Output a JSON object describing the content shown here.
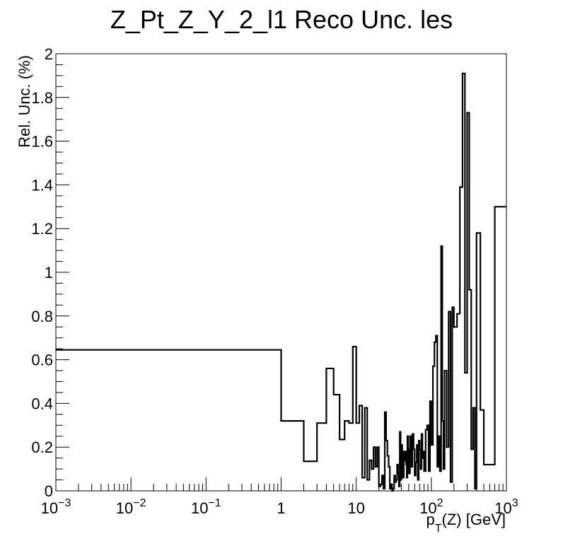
{
  "chart_data": {
    "type": "line",
    "style": "step-histogram",
    "title": "Z_Pt_Z_Y_2_l1 Reco Unc. les",
    "xlabel_base": "p",
    "xlabel_sub": "T",
    "xlabel_rest": "(Z) [GeV]",
    "ylabel": "Rel. Unc. (%)",
    "x_scale": "log",
    "xlim": [
      0.001,
      1000
    ],
    "ylim": [
      0,
      2
    ],
    "grid": false,
    "x_tick_labels": [
      {
        "value": 0.001,
        "base": "10",
        "exp": "−3"
      },
      {
        "value": 0.01,
        "base": "10",
        "exp": "−2"
      },
      {
        "value": 0.1,
        "base": "10",
        "exp": "−1"
      },
      {
        "value": 1,
        "base": "1",
        "exp": ""
      },
      {
        "value": 10,
        "base": "10",
        "exp": ""
      },
      {
        "value": 100,
        "base": "10",
        "exp": "2"
      },
      {
        "value": 1000,
        "base": "10",
        "exp": "3"
      }
    ],
    "y_ticks": [
      0,
      0.2,
      0.4,
      0.6,
      0.8,
      1,
      1.2,
      1.4,
      1.6,
      1.8,
      2
    ],
    "y_tick_labels": [
      "0",
      "0.2",
      "0.4",
      "0.6",
      "0.8",
      "1",
      "1.2",
      "1.4",
      "1.6",
      "1.8",
      "2"
    ],
    "series": [
      {
        "line_color": "#000000",
        "bin_edges": [
          0.001,
          1,
          2,
          3,
          4,
          5,
          6,
          7,
          8,
          9,
          10,
          11,
          12,
          13,
          14,
          15,
          16,
          17,
          18,
          19,
          20,
          21,
          22,
          23,
          24,
          25,
          26,
          27,
          28,
          29,
          30,
          31,
          32,
          33,
          34,
          35,
          36,
          37,
          38,
          39,
          40,
          41,
          42,
          43,
          44,
          45,
          46,
          47,
          48,
          49,
          50,
          52,
          54,
          56,
          58,
          60,
          62,
          64,
          66,
          68,
          70,
          72,
          74,
          76,
          78,
          80,
          84,
          88,
          92,
          96,
          100,
          105,
          110,
          115,
          120,
          125,
          130,
          135,
          140,
          145,
          150,
          160,
          170,
          180,
          190,
          200,
          220,
          240,
          260,
          280,
          300,
          320,
          340,
          360,
          380,
          400,
          450,
          500,
          600,
          700,
          1000
        ],
        "values": [
          0.645,
          0.32,
          0.135,
          0.31,
          0.56,
          0.44,
          0.235,
          0.32,
          0.31,
          0.66,
          0.31,
          0.39,
          0.06,
          0.38,
          0.05,
          0.14,
          0.1,
          0.2,
          0.11,
          0.2,
          0.02,
          0.03,
          0.07,
          0.01,
          0.36,
          0.23,
          0.16,
          0.11,
          0.01,
          0.03,
          0.0,
          0.01,
          0.07,
          0.04,
          0.05,
          0.12,
          0.08,
          0.02,
          0.27,
          0.05,
          0.21,
          0.12,
          0.06,
          0.18,
          0.14,
          0.18,
          0.12,
          0.06,
          0.25,
          0.19,
          0.08,
          0.25,
          0.11,
          0.26,
          0.19,
          0.07,
          0.13,
          0.21,
          0.05,
          0.23,
          0.19,
          0.1,
          0.26,
          0.15,
          0.18,
          0.09,
          0.28,
          0.3,
          0.09,
          0.41,
          0.21,
          0.57,
          0.68,
          0.71,
          0.11,
          0.25,
          0.09,
          1.12,
          0.32,
          0.1,
          0.55,
          0.2,
          0.82,
          0.04,
          0.84,
          0.75,
          0.81,
          1.39,
          1.91,
          0.54,
          1.73,
          0.92,
          0.19,
          0.38,
          0.01,
          1.18,
          0.37,
          0.12,
          0.12,
          1.3
        ]
      }
    ]
  }
}
